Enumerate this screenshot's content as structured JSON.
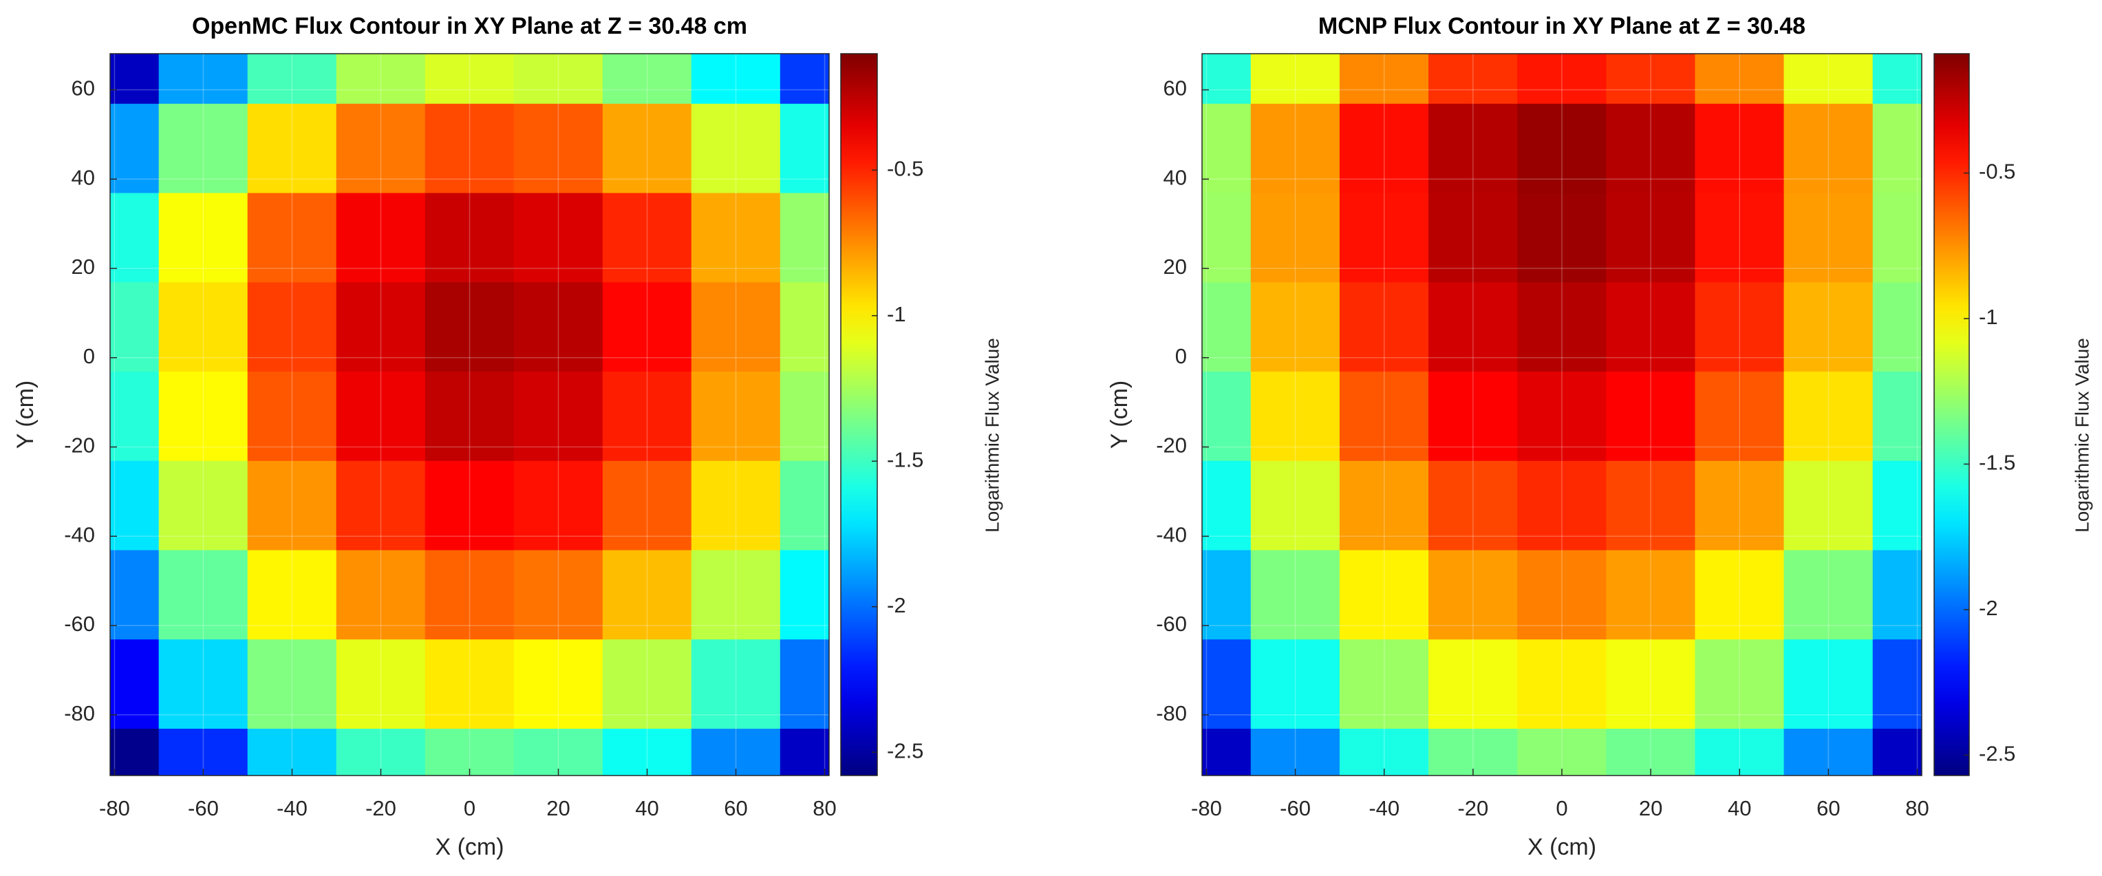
{
  "chart_data": [
    {
      "type": "contour",
      "title": "OpenMC Flux Contour in XY Plane at Z = 30.48 cm",
      "xlabel": "X (cm)",
      "ylabel": "Y (cm)",
      "colorbar_label": "Logarithmic Flux Value",
      "colormap": "jet",
      "grid": true,
      "x": [
        -80,
        -60,
        -40,
        -20,
        0,
        20,
        40,
        60,
        80
      ],
      "y": [
        -93,
        -73,
        -53,
        -33,
        -13,
        7,
        27,
        47,
        67
      ],
      "z": [
        [
          -2.55,
          -2.16,
          -1.76,
          -1.51,
          -1.4,
          -1.44,
          -1.62,
          -1.94,
          -2.41
        ],
        [
          -2.28,
          -1.74,
          -1.34,
          -1.09,
          -0.98,
          -1.02,
          -1.2,
          -1.52,
          -1.99
        ],
        [
          -1.95,
          -1.41,
          -1.01,
          -0.76,
          -0.65,
          -0.69,
          -0.87,
          -1.19,
          -1.66
        ],
        [
          -1.71,
          -1.17,
          -0.77,
          -0.52,
          -0.41,
          -0.45,
          -0.63,
          -0.95,
          -1.42
        ],
        [
          -1.56,
          -1.02,
          -0.62,
          -0.37,
          -0.26,
          -0.3,
          -0.48,
          -0.8,
          -1.27
        ],
        [
          -1.5,
          -0.96,
          -0.56,
          -0.31,
          -0.2,
          -0.24,
          -0.42,
          -0.74,
          -1.21
        ],
        [
          -1.58,
          -1.04,
          -0.64,
          -0.39,
          -0.28,
          -0.32,
          -0.5,
          -0.82,
          -1.29
        ],
        [
          -1.89,
          -1.35,
          -0.95,
          -0.7,
          -0.59,
          -0.63,
          -0.81,
          -1.13,
          -1.6
        ],
        [
          -2.42,
          -1.88,
          -1.48,
          -1.23,
          -1.12,
          -1.16,
          -1.34,
          -1.66,
          -2.13
        ]
      ],
      "xlim": [
        -81,
        81
      ],
      "ylim": [
        -93.6,
        68.1
      ],
      "xticks": [
        -80,
        -60,
        -40,
        -20,
        0,
        20,
        40,
        60,
        80
      ],
      "yticks": [
        -80,
        -60,
        -40,
        -20,
        0,
        20,
        40,
        60
      ],
      "clim": [
        -2.58,
        -0.1
      ],
      "cticks": [
        -2.5,
        -2,
        -1.5,
        -1,
        -0.5
      ]
    },
    {
      "type": "contour",
      "title": "MCNP Flux Contour in XY Plane at Z = 30.48",
      "xlabel": "X (cm)",
      "ylabel": "Y (cm)",
      "colorbar_label": "Logarithmic Flux Value",
      "colormap": "jet",
      "grid": true,
      "x": [
        -80,
        -60,
        -40,
        -20,
        0,
        20,
        40,
        60,
        80
      ],
      "y": [
        -93,
        -73,
        -53,
        -33,
        -13,
        7,
        27,
        47,
        67
      ],
      "z": [
        [
          -2.4,
          -1.92,
          -1.58,
          -1.37,
          -1.3,
          -1.37,
          -1.58,
          -1.92,
          -2.4
        ],
        [
          -2.08,
          -1.6,
          -1.26,
          -1.05,
          -0.98,
          -1.05,
          -1.26,
          -1.6,
          -2.08
        ],
        [
          -1.81,
          -1.33,
          -0.99,
          -0.78,
          -0.71,
          -0.78,
          -0.99,
          -1.33,
          -1.81
        ],
        [
          -1.6,
          -1.12,
          -0.78,
          -0.57,
          -0.5,
          -0.57,
          -0.78,
          -1.12,
          -1.6
        ],
        [
          -1.43,
          -0.95,
          -0.61,
          -0.4,
          -0.33,
          -0.4,
          -0.61,
          -0.95,
          -1.43
        ],
        [
          -1.32,
          -0.84,
          -0.5,
          -0.29,
          -0.22,
          -0.29,
          -0.5,
          -0.84,
          -1.32
        ],
        [
          -1.26,
          -0.78,
          -0.44,
          -0.23,
          -0.16,
          -0.23,
          -0.44,
          -0.78,
          -1.26
        ],
        [
          -1.25,
          -0.77,
          -0.43,
          -0.22,
          -0.15,
          -0.22,
          -0.43,
          -0.77,
          -1.25
        ],
        [
          -1.55,
          -1.07,
          -0.73,
          -0.52,
          -0.45,
          -0.52,
          -0.73,
          -1.07,
          -1.55
        ]
      ],
      "xlim": [
        -81,
        81
      ],
      "ylim": [
        -93.6,
        68.1
      ],
      "xticks": [
        -80,
        -60,
        -40,
        -20,
        0,
        20,
        40,
        60,
        80
      ],
      "yticks": [
        -80,
        -60,
        -40,
        -20,
        0,
        20,
        40,
        60
      ],
      "clim": [
        -2.57,
        -0.09
      ],
      "cticks": [
        -2.5,
        -2,
        -1.5,
        -1,
        -0.5
      ]
    }
  ]
}
